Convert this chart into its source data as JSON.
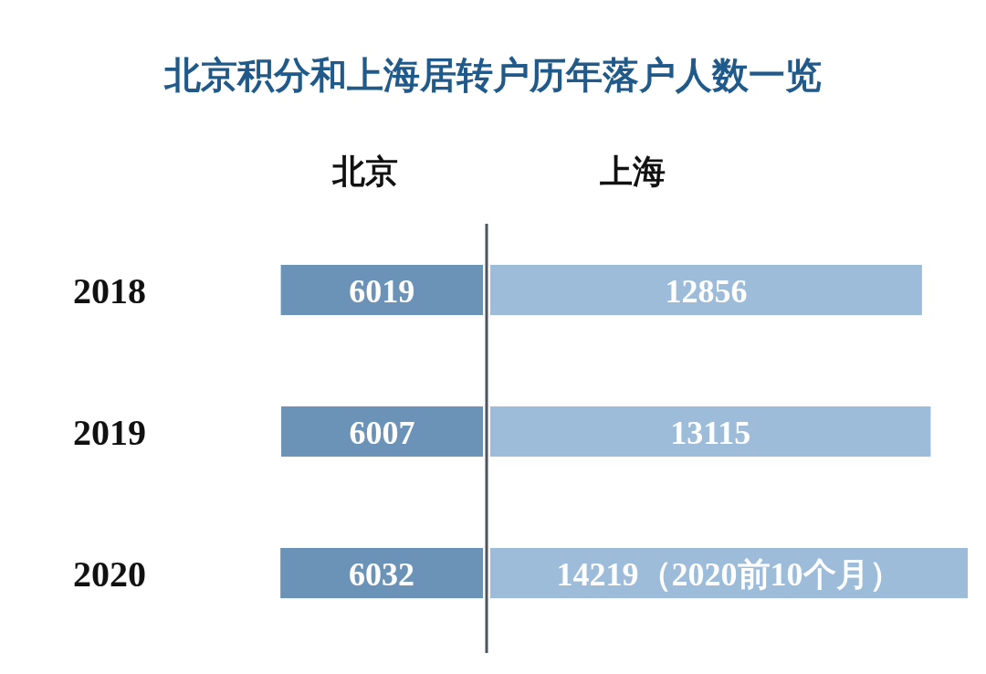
{
  "chart_data": [
    {
      "type": "bar",
      "orientation": "horizontal",
      "title": "北京积分和上海居转户历年落户人数一览",
      "categories": [
        "2018",
        "2019",
        "2020"
      ],
      "series": [
        {
          "name": "北京",
          "color": "#6b93b8",
          "values": [
            6019,
            6007,
            6032
          ],
          "value_labels": [
            "6019",
            "6007",
            "6032"
          ]
        }
      ]
    },
    {
      "type": "bar",
      "orientation": "horizontal",
      "categories": [
        "2018",
        "2019",
        "2020"
      ],
      "tick_labels": false,
      "series": [
        {
          "name": "上海",
          "color": "#9dbcd9",
          "values": [
            12856,
            13115,
            14219
          ],
          "value_labels": [
            "12856",
            "13115",
            "14219（2020前10个月）"
          ]
        }
      ]
    }
  ]
}
